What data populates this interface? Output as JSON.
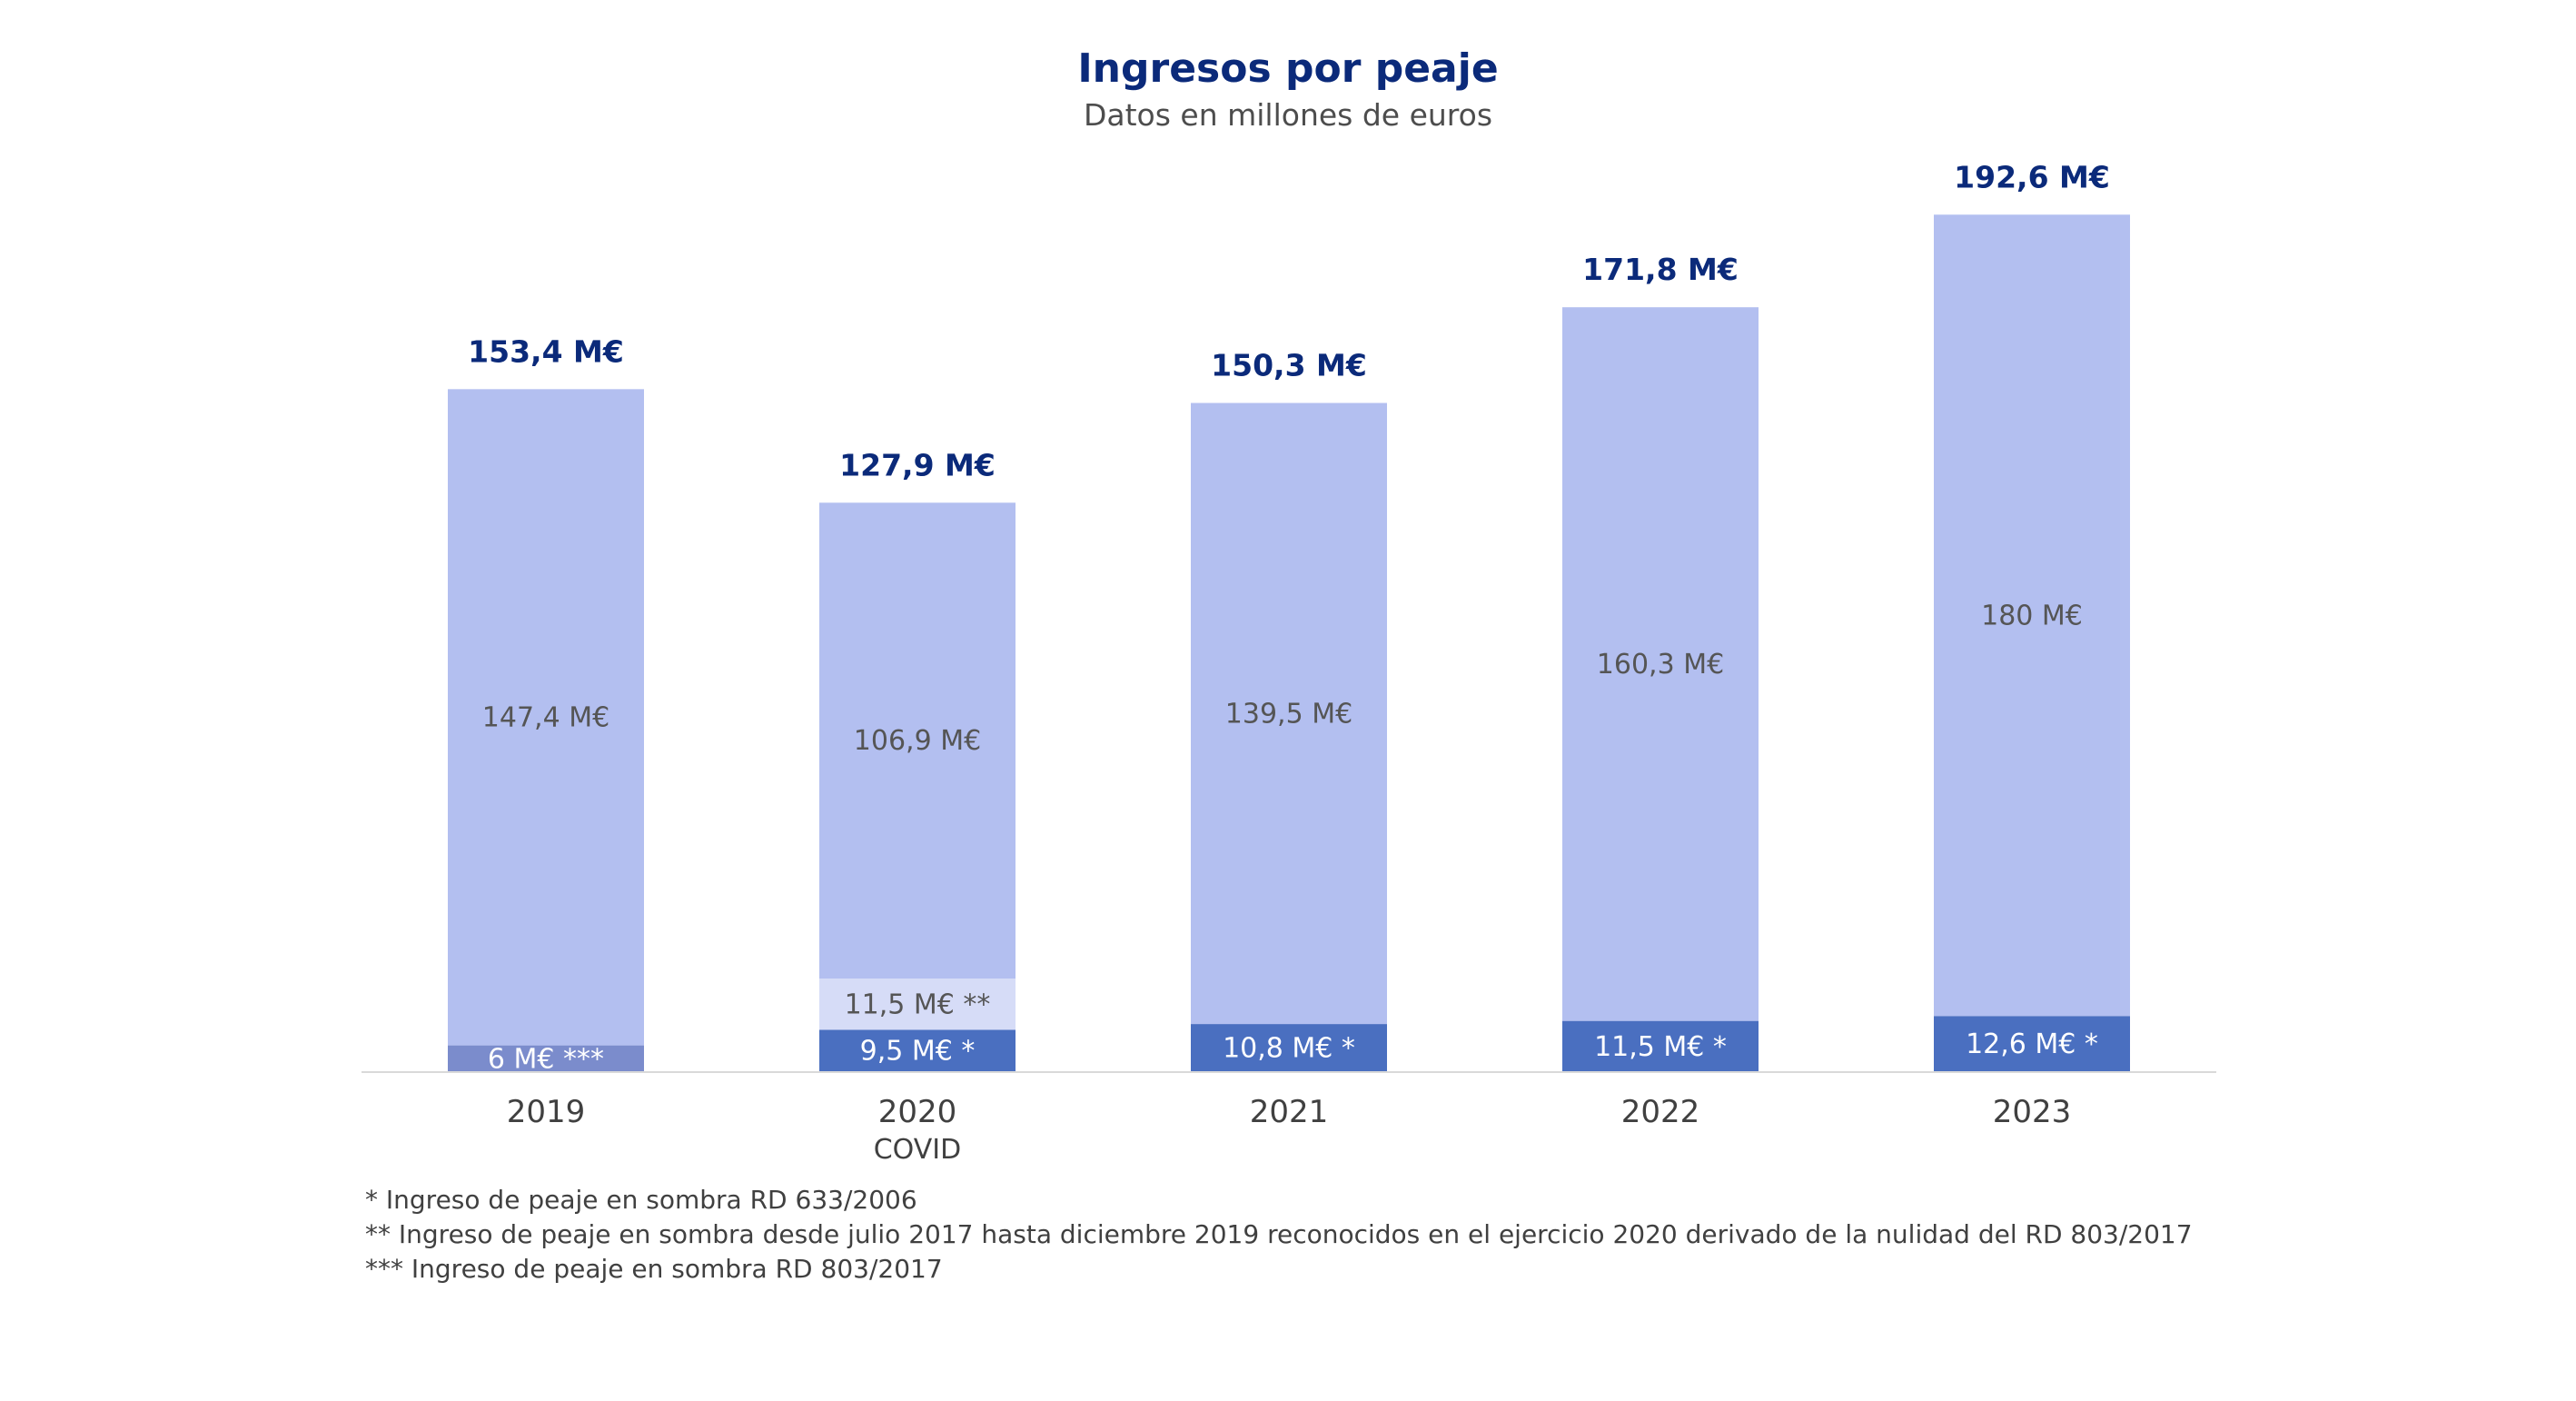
{
  "chart_data": {
    "type": "bar",
    "stacked": true,
    "title": "Ingresos por peaje",
    "subtitle": "Datos en millones de euros",
    "xlabel": "",
    "ylabel": "",
    "ylim": [
      0,
      200
    ],
    "grid": false,
    "categories": [
      "2019",
      "2020",
      "2021",
      "2022",
      "2023"
    ],
    "category_sublabels": [
      "",
      "COVID",
      "",
      "",
      ""
    ],
    "totals": [
      153.4,
      127.9,
      150.3,
      171.8,
      192.6
    ],
    "total_labels": [
      "153,4 M€",
      "127,9 M€",
      "150,3 M€",
      "171,8 M€",
      "192,6 M€"
    ],
    "segments": [
      [
        {
          "value": 6.0,
          "label": "6 M€ ***",
          "color": "#7b8ccc",
          "text_style": "light"
        },
        {
          "value": 147.4,
          "label": "147,4 M€",
          "color": "#b3bff0",
          "text_style": "dark"
        }
      ],
      [
        {
          "value": 9.5,
          "label": "9,5 M€ *",
          "color": "#4a6fc0",
          "text_style": "light"
        },
        {
          "value": 11.5,
          "label": "11,5 M€ **",
          "color": "#d6dcf7",
          "text_style": "dark"
        },
        {
          "value": 106.9,
          "label": "106,9 M€",
          "color": "#b3bff0",
          "text_style": "dark"
        }
      ],
      [
        {
          "value": 10.8,
          "label": "10,8 M€ *",
          "color": "#4a6fc0",
          "text_style": "light"
        },
        {
          "value": 139.5,
          "label": "139,5 M€",
          "color": "#b3bff0",
          "text_style": "dark"
        }
      ],
      [
        {
          "value": 11.5,
          "label": "11,5 M€ *",
          "color": "#4a6fc0",
          "text_style": "light"
        },
        {
          "value": 160.3,
          "label": "160,3 M€",
          "color": "#b3bff0",
          "text_style": "dark"
        }
      ],
      [
        {
          "value": 12.6,
          "label": "12,6 M€ *",
          "color": "#4a6fc0",
          "text_style": "light"
        },
        {
          "value": 180,
          "label": "180 M€",
          "color": "#b3bff0",
          "text_style": "dark"
        }
      ]
    ],
    "footnotes": [
      "* Ingreso de peaje en sombra RD 633/2006",
      "** Ingreso de peaje en sombra desde julio 2017 hasta diciembre 2019 reconocidos en el ejercicio 2020 derivado de la nulidad del RD 803/2017",
      "*** Ingreso de peaje en sombra RD 803/2017"
    ],
    "colors": {
      "title": "#0b2a7a",
      "axis": "#d9d9d9"
    }
  }
}
